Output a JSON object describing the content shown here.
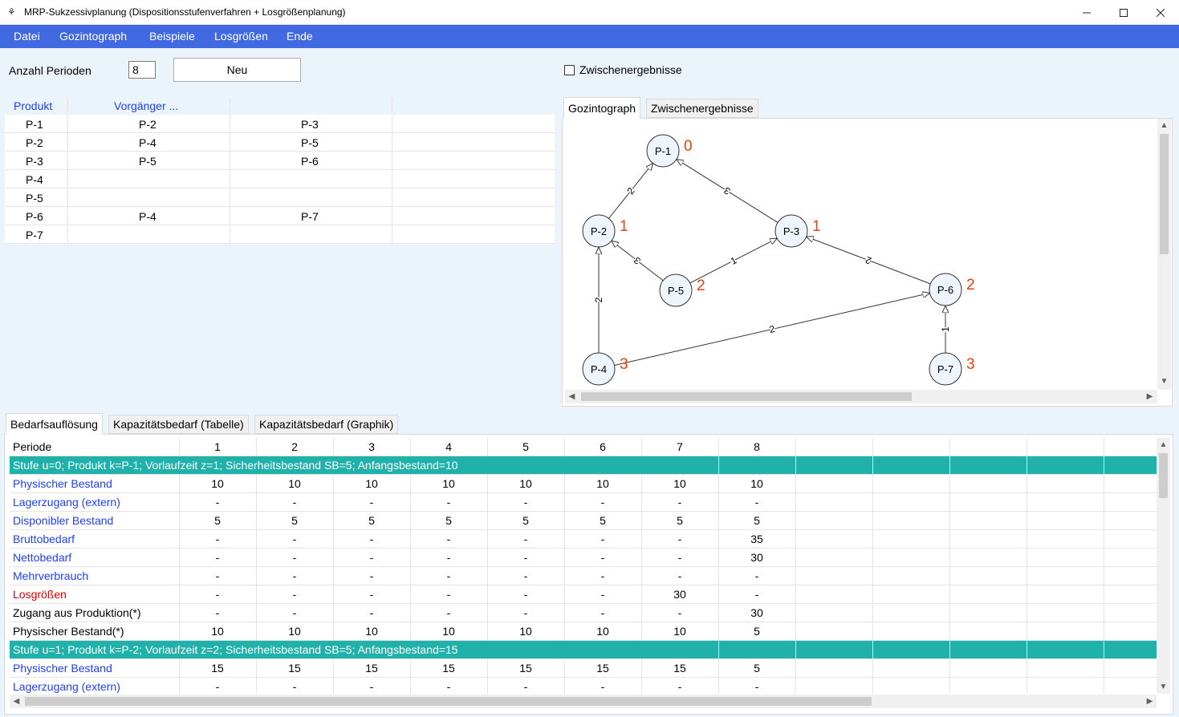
{
  "window": {
    "title": "MRP-Sukzessivplanung (Dispositionsstufenverfahren + Losgrößenplanung)"
  },
  "menu": [
    "Datei",
    "Gozintograph",
    "Beispiele",
    "Losgrößen",
    "Ende"
  ],
  "controls": {
    "periods_label": "Anzahl Perioden",
    "periods_value": "8",
    "new_button": "Neu",
    "intermediate_checkbox": "Zwischenergebnisse",
    "intermediate_checked": false
  },
  "predecessors": {
    "headers": [
      "Produkt",
      "Vorgänger ..."
    ],
    "rows": [
      [
        "P-1",
        "P-2",
        "P-3"
      ],
      [
        "P-2",
        "P-4",
        "P-5"
      ],
      [
        "P-3",
        "P-5",
        "P-6"
      ],
      [
        "P-4",
        "",
        ""
      ],
      [
        "P-5",
        "",
        ""
      ],
      [
        "P-6",
        "P-4",
        "P-7"
      ],
      [
        "P-7",
        "",
        ""
      ]
    ]
  },
  "graph_tabs": [
    "Gozintograph",
    "Zwischenergebnisse"
  ],
  "graph": {
    "nodes": [
      {
        "id": "P-1",
        "level": "0"
      },
      {
        "id": "P-2",
        "level": "1"
      },
      {
        "id": "P-3",
        "level": "1"
      },
      {
        "id": "P-5",
        "level": "2"
      },
      {
        "id": "P-6",
        "level": "2"
      },
      {
        "id": "P-4",
        "level": "3"
      },
      {
        "id": "P-7",
        "level": "3"
      }
    ],
    "edges": [
      {
        "from": "P-2",
        "to": "P-1",
        "qty": "2"
      },
      {
        "from": "P-3",
        "to": "P-1",
        "qty": "3"
      },
      {
        "from": "P-5",
        "to": "P-2",
        "qty": "3"
      },
      {
        "from": "P-5",
        "to": "P-3",
        "qty": "1"
      },
      {
        "from": "P-6",
        "to": "P-3",
        "qty": "2"
      },
      {
        "from": "P-4",
        "to": "P-2",
        "qty": "2"
      },
      {
        "from": "P-4",
        "to": "P-6",
        "qty": "2"
      },
      {
        "from": "P-7",
        "to": "P-6",
        "qty": "1"
      }
    ],
    "node_color": "#eef5fc",
    "level_color": "#e8400c"
  },
  "bottom_tabs": [
    "Bedarfsauflösung",
    "Kapazitätsbedarf (Tabelle)",
    "Kapazitätsbedarf (Graphik)"
  ],
  "grid": {
    "header": [
      "Periode",
      "1",
      "2",
      "3",
      "4",
      "5",
      "6",
      "7",
      "8"
    ],
    "stage_color": "#20b2aa",
    "rows": [
      {
        "type": "stage",
        "text": "Stufe u=0; Produkt k=P-1; Vorlaufzeit z=1; Sicherheitsbestand SB=5; Anfangsbestand=10"
      },
      {
        "type": "data",
        "style": "blue",
        "label": "Physischer Bestand",
        "values": [
          "10",
          "10",
          "10",
          "10",
          "10",
          "10",
          "10",
          "10"
        ]
      },
      {
        "type": "data",
        "style": "blue",
        "label": "Lagerzugang (extern)",
        "values": [
          "-",
          "-",
          "-",
          "-",
          "-",
          "-",
          "-",
          "-"
        ]
      },
      {
        "type": "data",
        "style": "blue",
        "label": "Disponibler Bestand",
        "values": [
          "5",
          "5",
          "5",
          "5",
          "5",
          "5",
          "5",
          "5"
        ]
      },
      {
        "type": "data",
        "style": "blue",
        "label": "Bruttobedarf",
        "values": [
          "-",
          "-",
          "-",
          "-",
          "-",
          "-",
          "-",
          "35"
        ]
      },
      {
        "type": "data",
        "style": "blue",
        "label": "Nettobedarf",
        "values": [
          "-",
          "-",
          "-",
          "-",
          "-",
          "-",
          "-",
          "30"
        ]
      },
      {
        "type": "data",
        "style": "blue",
        "label": "Mehrverbrauch",
        "values": [
          "-",
          "-",
          "-",
          "-",
          "-",
          "-",
          "-",
          "-"
        ]
      },
      {
        "type": "data",
        "style": "red",
        "label": "Losgrößen",
        "values": [
          "-",
          "-",
          "-",
          "-",
          "-",
          "-",
          "30",
          "-"
        ]
      },
      {
        "type": "data",
        "style": "black",
        "label": "Zugang aus Produktion(*)",
        "values": [
          "-",
          "-",
          "-",
          "-",
          "-",
          "-",
          "-",
          "30"
        ]
      },
      {
        "type": "data",
        "style": "black",
        "label": "Physischer Bestand(*)",
        "values": [
          "10",
          "10",
          "10",
          "10",
          "10",
          "10",
          "10",
          "5"
        ]
      },
      {
        "type": "stage",
        "text": "Stufe u=1; Produkt k=P-2; Vorlaufzeit z=2; Sicherheitsbestand SB=5; Anfangsbestand=15"
      },
      {
        "type": "data",
        "style": "blue",
        "label": "Physischer Bestand",
        "values": [
          "15",
          "15",
          "15",
          "15",
          "15",
          "15",
          "15",
          "5"
        ]
      },
      {
        "type": "data",
        "style": "blue",
        "label": "Lagerzugang (extern)",
        "values": [
          "-",
          "-",
          "-",
          "-",
          "-",
          "-",
          "-",
          "-"
        ]
      }
    ]
  }
}
